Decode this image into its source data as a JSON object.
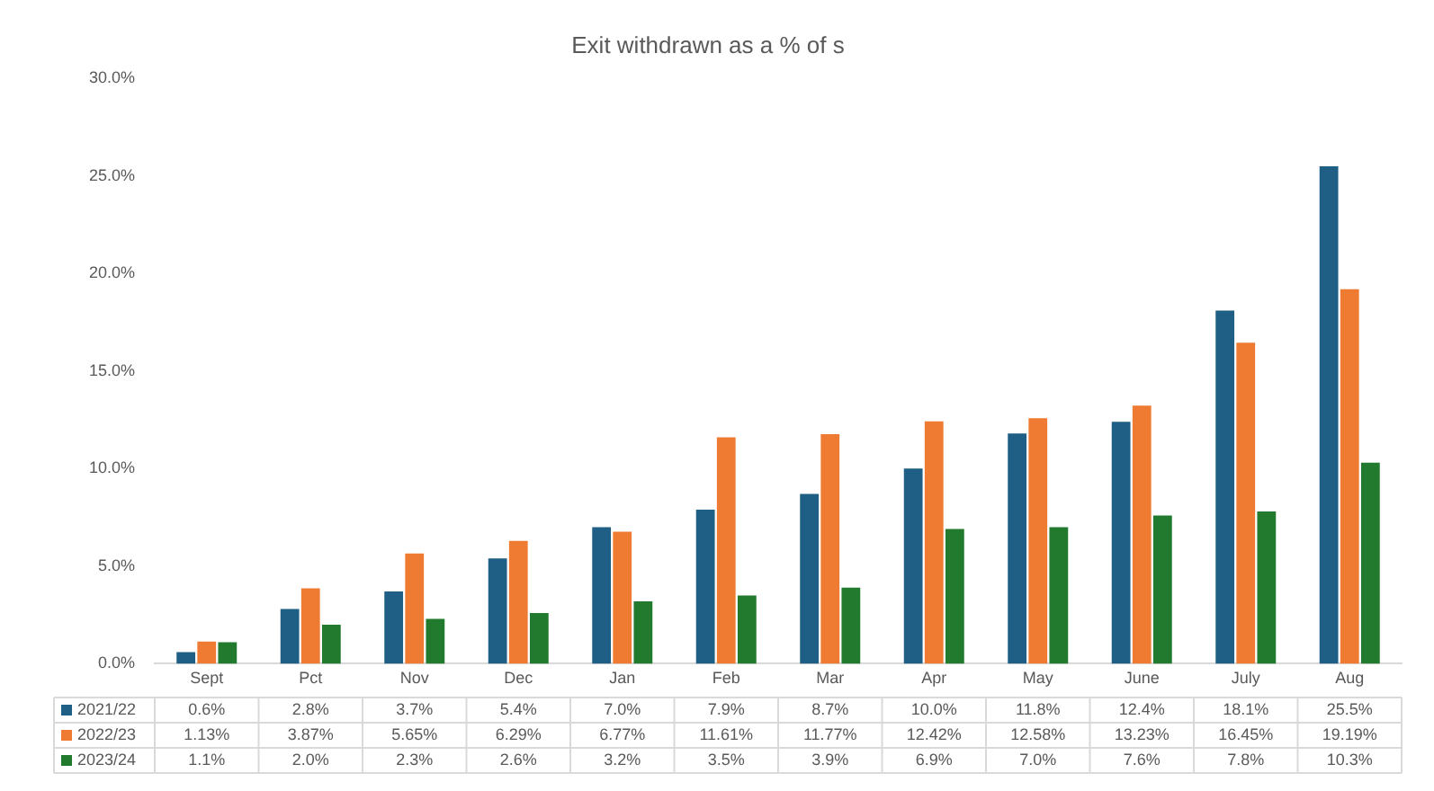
{
  "chart_data": {
    "type": "bar",
    "title": "Exit withdrawn as a % of s",
    "categories": [
      "Sept",
      "Pct",
      "Nov",
      "Dec",
      "Jan",
      "Feb",
      "Mar",
      "Apr",
      "May",
      "June",
      "July",
      "Aug"
    ],
    "series": [
      {
        "name": "2021/22",
        "color": "#1f5f86",
        "values": [
          0.6,
          2.8,
          3.7,
          5.4,
          7.0,
          7.9,
          8.7,
          10.0,
          11.8,
          12.4,
          18.1,
          25.5
        ],
        "value_labels": [
          "0.6%",
          "2.8%",
          "3.7%",
          "5.4%",
          "7.0%",
          "7.9%",
          "8.7%",
          "10.0%",
          "11.8%",
          "12.4%",
          "18.1%",
          "25.5%"
        ]
      },
      {
        "name": "2022/23",
        "color": "#ef7b32",
        "values": [
          1.13,
          3.87,
          5.65,
          6.29,
          6.77,
          11.61,
          11.77,
          12.42,
          12.58,
          13.23,
          16.45,
          19.19
        ],
        "value_labels": [
          "1.13%",
          "3.87%",
          "5.65%",
          "6.29%",
          "6.77%",
          "11.61%",
          "11.77%",
          "12.42%",
          "12.58%",
          "13.23%",
          "16.45%",
          "19.19%"
        ]
      },
      {
        "name": "2023/24",
        "color": "#217a2e",
        "values": [
          1.1,
          2.0,
          2.3,
          2.6,
          3.2,
          3.5,
          3.9,
          6.9,
          7.0,
          7.6,
          7.8,
          10.3
        ],
        "value_labels": [
          "1.1%",
          "2.0%",
          "2.3%",
          "2.6%",
          "3.2%",
          "3.5%",
          "3.9%",
          "6.9%",
          "7.0%",
          "7.6%",
          "7.8%",
          "10.3%"
        ]
      }
    ],
    "ylim": [
      0,
      30
    ],
    "yticks": [
      {
        "value": 0,
        "label": "0.0%"
      },
      {
        "value": 5,
        "label": "5.0%"
      },
      {
        "value": 10,
        "label": "10.0%"
      },
      {
        "value": 15,
        "label": "15.0%"
      },
      {
        "value": 20,
        "label": "20.0%"
      },
      {
        "value": 25,
        "label": "25.0%"
      },
      {
        "value": 30,
        "label": "30.0%"
      }
    ],
    "grid": false,
    "legend": "bottom left"
  }
}
